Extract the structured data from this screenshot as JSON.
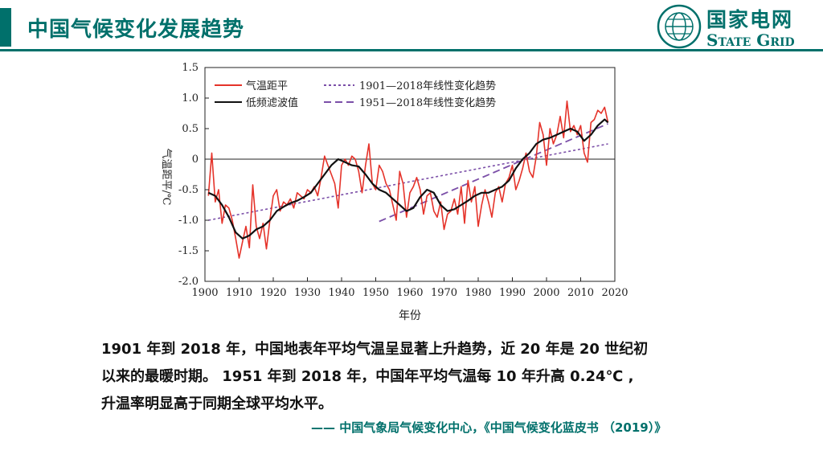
{
  "header": {
    "title": "中国气候变化发展趋势",
    "logo_cn": "国家电网",
    "logo_en": "State Grid",
    "accent_color": "#00706b"
  },
  "chart_data": {
    "type": "line",
    "xlabel": "年份",
    "ylabel": "气温距平/℃",
    "xlim": [
      1900,
      2020
    ],
    "ylim": [
      -2.0,
      1.5
    ],
    "x_ticks": [
      "1900",
      "1910",
      "1920",
      "1930",
      "1940",
      "1950",
      "1960",
      "1970",
      "1980",
      "1990",
      "2000",
      "2010",
      "2020"
    ],
    "y_ticks": [
      "1.5",
      "1.0",
      "0.5",
      "0",
      "-0.5",
      "-1.0",
      "-1.5",
      "-2.0"
    ],
    "legend": [
      {
        "label": "气温距平",
        "color": "#e5332a",
        "style": "solid"
      },
      {
        "label": "低频滤波值",
        "color": "#111111",
        "style": "solid"
      },
      {
        "label": "1901—2018年线性变化趋势",
        "color": "#7b4fa8",
        "style": "dotted"
      },
      {
        "label": "1951—2018年线性变化趋势",
        "color": "#7b4fa8",
        "style": "dashed"
      }
    ],
    "series": [
      {
        "name": "气温距平",
        "color": "#e5332a",
        "x": [
          1901,
          1902,
          1903,
          1904,
          1905,
          1906,
          1907,
          1908,
          1909,
          1910,
          1911,
          1912,
          1913,
          1914,
          1915,
          1916,
          1917,
          1918,
          1919,
          1920,
          1921,
          1922,
          1923,
          1924,
          1925,
          1926,
          1927,
          1928,
          1929,
          1930,
          1931,
          1932,
          1933,
          1934,
          1935,
          1936,
          1937,
          1938,
          1939,
          1940,
          1941,
          1942,
          1943,
          1944,
          1945,
          1946,
          1947,
          1948,
          1949,
          1950,
          1951,
          1952,
          1953,
          1954,
          1955,
          1956,
          1957,
          1958,
          1959,
          1960,
          1961,
          1962,
          1963,
          1964,
          1965,
          1966,
          1967,
          1968,
          1969,
          1970,
          1971,
          1972,
          1973,
          1974,
          1975,
          1976,
          1977,
          1978,
          1979,
          1980,
          1981,
          1982,
          1983,
          1984,
          1985,
          1986,
          1987,
          1988,
          1989,
          1990,
          1991,
          1992,
          1993,
          1994,
          1995,
          1996,
          1997,
          1998,
          1999,
          2000,
          2001,
          2002,
          2003,
          2004,
          2005,
          2006,
          2007,
          2008,
          2009,
          2010,
          2011,
          2012,
          2013,
          2014,
          2015,
          2016,
          2017,
          2018
        ],
        "values": [
          -0.6,
          0.1,
          -0.7,
          -0.5,
          -1.05,
          -0.75,
          -0.8,
          -1.0,
          -1.3,
          -1.62,
          -1.35,
          -1.1,
          -1.45,
          -0.42,
          -1.1,
          -1.3,
          -1.05,
          -1.47,
          -1.0,
          -0.6,
          -0.5,
          -0.85,
          -0.7,
          -0.75,
          -0.65,
          -0.8,
          -0.55,
          -0.6,
          -0.65,
          -0.5,
          -0.55,
          -0.45,
          -0.6,
          -0.3,
          0.05,
          -0.1,
          -0.25,
          -0.4,
          -0.8,
          -0.1,
          0.0,
          -0.1,
          0.05,
          0.0,
          -0.2,
          -0.55,
          -0.1,
          0.25,
          -0.4,
          -0.5,
          -0.1,
          -0.2,
          -0.4,
          -0.5,
          -0.75,
          -1.0,
          -0.2,
          -0.4,
          -0.95,
          -0.55,
          -0.45,
          -0.3,
          -0.5,
          -0.9,
          -0.6,
          -0.55,
          -0.85,
          -0.95,
          -0.7,
          -1.15,
          -0.9,
          -0.85,
          -0.65,
          -0.9,
          -0.45,
          -1.05,
          -0.35,
          -0.7,
          -0.45,
          -1.1,
          -0.75,
          -0.5,
          -0.7,
          -0.95,
          -0.55,
          -0.45,
          -0.7,
          -0.4,
          -0.3,
          -0.1,
          -0.5,
          -0.35,
          -0.15,
          0.1,
          -0.2,
          -0.3,
          0.05,
          0.6,
          0.4,
          -0.1,
          0.5,
          0.25,
          0.4,
          0.7,
          0.35,
          0.95,
          0.45,
          0.55,
          0.4,
          0.55,
          0.1,
          -0.05,
          0.6,
          0.65,
          0.8,
          0.75,
          0.85,
          0.6
        ]
      },
      {
        "name": "低频滤波值",
        "color": "#111111",
        "x": [
          1901,
          1903,
          1905,
          1907,
          1909,
          1911,
          1913,
          1915,
          1917,
          1919,
          1921,
          1923,
          1925,
          1927,
          1929,
          1931,
          1933,
          1935,
          1937,
          1939,
          1941,
          1943,
          1945,
          1947,
          1949,
          1951,
          1953,
          1955,
          1957,
          1959,
          1961,
          1963,
          1965,
          1967,
          1969,
          1971,
          1973,
          1975,
          1977,
          1979,
          1981,
          1983,
          1985,
          1987,
          1989,
          1991,
          1993,
          1995,
          1997,
          1999,
          2001,
          2003,
          2005,
          2007,
          2009,
          2011,
          2013,
          2015,
          2017,
          2018
        ],
        "values": [
          -0.55,
          -0.6,
          -0.75,
          -0.95,
          -1.2,
          -1.3,
          -1.25,
          -1.15,
          -1.1,
          -1.0,
          -0.85,
          -0.78,
          -0.72,
          -0.68,
          -0.62,
          -0.55,
          -0.4,
          -0.25,
          -0.1,
          0.0,
          -0.05,
          -0.1,
          -0.12,
          -0.25,
          -0.4,
          -0.5,
          -0.55,
          -0.65,
          -0.75,
          -0.85,
          -0.8,
          -0.62,
          -0.5,
          -0.55,
          -0.75,
          -0.85,
          -0.82,
          -0.75,
          -0.68,
          -0.6,
          -0.55,
          -0.55,
          -0.5,
          -0.45,
          -0.35,
          -0.15,
          0.0,
          0.1,
          0.25,
          0.32,
          0.35,
          0.4,
          0.45,
          0.5,
          0.45,
          0.3,
          0.4,
          0.55,
          0.65,
          0.6
        ]
      },
      {
        "name": "1901—2018年线性变化趋势",
        "color": "#7b4fa8",
        "x": [
          1901,
          2018
        ],
        "values": [
          -1.0,
          0.25
        ]
      },
      {
        "name": "1951—2018年线性变化趋势",
        "color": "#7b4fa8",
        "x": [
          1951,
          2018
        ],
        "values": [
          -1.02,
          0.58
        ]
      }
    ]
  },
  "content": {
    "line1": "1901 年到 2018 年，中国地表年平均气温呈显著上升趋势，近 20 年是 20 世纪初",
    "line2": "以来的最暖时期。 1951 年到 2018 年，中国年平均气温每 10 年升高 0.24℃ ,",
    "line3": "升温率明显高于同期全球平均水平。",
    "source": "—— 中国气象局气候变化中心，《中国气候变化蓝皮书 （2019）》"
  }
}
